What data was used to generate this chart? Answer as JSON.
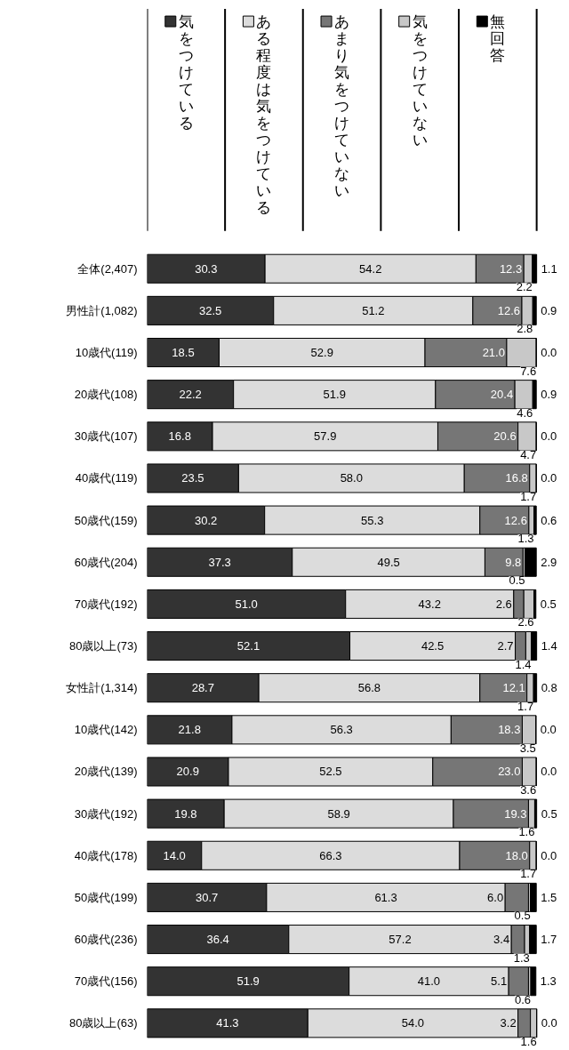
{
  "chart_data": {
    "type": "bar",
    "orientation": "horizontal",
    "stacked": true,
    "legend": "top",
    "grid": false,
    "categories": [
      "全体(2,407)",
      "男性計(1,082)",
      "10歳代(119)",
      "20歳代(108)",
      "30歳代(107)",
      "40歳代(119)",
      "50歳代(159)",
      "60歳代(204)",
      "70歳代(192)",
      "80歳以上(73)",
      "女性計(1,314)",
      "10歳代(142)",
      "20歳代(139)",
      "30歳代(192)",
      "40歳代(178)",
      "50歳代(199)",
      "60歳代(236)",
      "70歳代(156)",
      "80歳以上(63)"
    ],
    "series": [
      {
        "name": "気をつけている",
        "color": "#333333",
        "values": [
          30.3,
          32.5,
          18.5,
          22.2,
          16.8,
          23.5,
          30.2,
          37.3,
          51.0,
          52.1,
          28.7,
          21.8,
          20.9,
          19.8,
          14.0,
          30.7,
          36.4,
          51.9,
          41.3
        ],
        "value_labels": [
          "30.3",
          "32.5",
          "18.5",
          "22.2",
          "16.8",
          "23.5",
          "30.2",
          "37.3",
          "51.0",
          "52.1",
          "28.7",
          "21.8",
          "20.9",
          "19.8",
          "14.0",
          "30.7",
          "36.4",
          "51.9",
          "41.3"
        ]
      },
      {
        "name": "ある程度は気をつけている",
        "color": "#dcdcdc",
        "values": [
          54.2,
          51.2,
          52.9,
          51.9,
          57.9,
          58.0,
          55.3,
          49.5,
          43.2,
          42.5,
          56.8,
          56.3,
          52.5,
          58.9,
          66.3,
          61.3,
          57.2,
          41.0,
          54.0
        ],
        "value_labels": [
          "54.2",
          "51.2",
          "52.9",
          "51.9",
          "57.9",
          "58.0",
          "55.3",
          "49.5",
          "43.2",
          "42.5",
          "56.8",
          "56.3",
          "52.5",
          "58.9",
          "66.3",
          "61.3",
          "57.2",
          "41.0",
          "54.0"
        ]
      },
      {
        "name": "あまり気をつけていない",
        "color": "#767676",
        "values": [
          12.3,
          12.6,
          21.0,
          20.4,
          20.6,
          16.8,
          12.6,
          9.8,
          2.6,
          2.7,
          12.1,
          18.3,
          23.0,
          19.3,
          18.0,
          6.0,
          3.4,
          5.1,
          3.2
        ],
        "value_labels": [
          "12.3",
          "12.6",
          "21.0",
          "20.4",
          "20.6",
          "16.8",
          "12.6",
          "9.8",
          "2.6",
          "2.7",
          "12.1",
          "18.3",
          "23.0",
          "19.3",
          "18.0",
          "6.0",
          "3.4",
          "5.1",
          "3.2"
        ]
      },
      {
        "name": "気をつけていない",
        "color": "#c8c8c8",
        "values": [
          2.2,
          2.8,
          7.6,
          4.6,
          4.7,
          1.7,
          1.3,
          0.5,
          2.6,
          1.4,
          1.7,
          3.5,
          3.6,
          1.6,
          1.7,
          0.5,
          1.3,
          0.6,
          1.6
        ],
        "value_labels": [
          "2.2",
          "2.8",
          "7.6",
          "4.6",
          "4.7",
          "1.7",
          "1.3",
          "0.5",
          "2.6",
          "1.4",
          "1.7",
          "3.5",
          "3.6",
          "1.6",
          "1.7",
          "0.5",
          "1.3",
          "0.6",
          "1.6"
        ]
      },
      {
        "name": "無回答",
        "color": "#000000",
        "values": [
          1.1,
          0.9,
          0.0,
          0.9,
          0.0,
          0.0,
          0.6,
          2.9,
          0.5,
          1.4,
          0.8,
          0.0,
          0.0,
          0.5,
          0.0,
          1.5,
          1.7,
          1.3,
          0.0
        ],
        "value_labels": [
          "1.1",
          "0.9",
          "0.0",
          "0.9",
          "0.0",
          "0.0",
          "0.6",
          "2.9",
          "0.5",
          "1.4",
          "0.8",
          "0.0",
          "0.0",
          "0.5",
          "0.0",
          "1.5",
          "1.7",
          "1.3",
          "0.0"
        ]
      }
    ]
  }
}
